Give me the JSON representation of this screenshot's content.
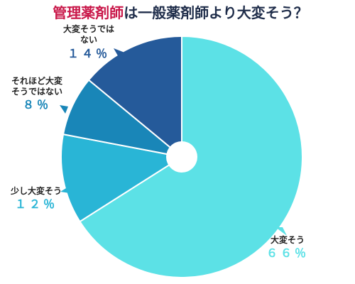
{
  "chart_data": {
    "type": "pie",
    "style": "donut",
    "title": {
      "highlight": "管理薬剤師",
      "rest": "は一般薬剤師より大変そう？",
      "highlight_color": "#c9184a",
      "rest_color": "#1f2d4a"
    },
    "start": "12 o'clock, clockwise",
    "slices": [
      {
        "label_lines": [
          "大変そう"
        ],
        "value": 66,
        "value_text": "６６％",
        "color": "#5ce1e6",
        "value_color": "#5ce1e6"
      },
      {
        "label_lines": [
          "少し大変そう"
        ],
        "value": 12,
        "value_text": "１２％",
        "color": "#29b5d6",
        "value_color": "#29b5d6"
      },
      {
        "label_lines": [
          "それほど大変",
          "そうではない"
        ],
        "value": 8,
        "value_text": "８％",
        "color": "#1986b8",
        "value_color": "#1986b8"
      },
      {
        "label_lines": [
          "大変そうでは",
          "ない"
        ],
        "value": 14,
        "value_text": "１４％",
        "color": "#255a9a",
        "value_color": "#255a9a"
      }
    ],
    "label_color": "#222222"
  }
}
